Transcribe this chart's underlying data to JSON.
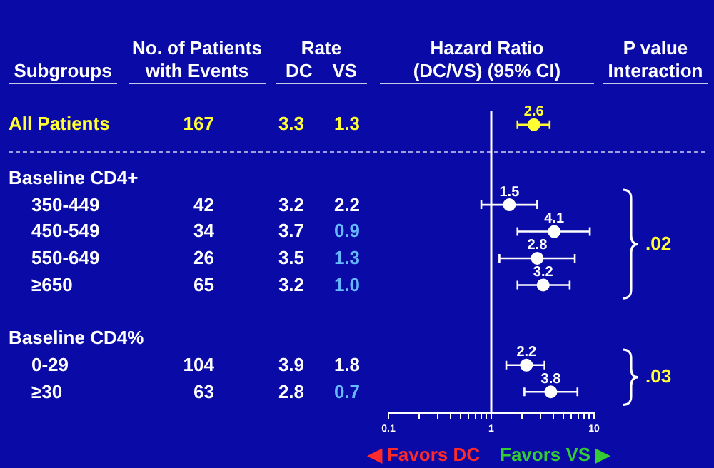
{
  "chart_data": [
    {
      "type": "other",
      "ylabel": "Subgroups",
      "legend_title": "Rate",
      "data_labels": true,
      "categories": [
        "All Patients",
        null,
        "Baseline CD4+",
        "350-449",
        "450-549",
        "550-649",
        "≥650",
        null,
        "Baseline CD4%",
        "0-29",
        "≥30"
      ],
      "series": [
        {
          "name": "No. of Patients with Events",
          "values": [
            167,
            null,
            null,
            42,
            34,
            26,
            65,
            null,
            null,
            104,
            63
          ],
          "colors": [
            "#ffff33",
            null,
            "#ffffff",
            "#ffffff",
            "#ffffff",
            "#ffffff",
            "#ffffff",
            null,
            "#ffffff",
            "#ffffff",
            "#ffffff"
          ]
        },
        {
          "name": "DC",
          "values": [
            3.3,
            null,
            null,
            3.2,
            3.7,
            3.5,
            3.2,
            null,
            null,
            3.9,
            2.8
          ],
          "colors": [
            "#ffff33",
            null,
            null,
            "#ffffff",
            "#ffffff",
            "#ffffff",
            "#ffffff",
            null,
            null,
            "#ffffff",
            "#ffffff"
          ]
        },
        {
          "name": "VS",
          "values": [
            1.3,
            null,
            null,
            2.2,
            0.9,
            1.3,
            1.0,
            null,
            null,
            1.8,
            0.7
          ],
          "value_labels": [
            "1.3",
            null,
            null,
            "2.2",
            "0.9",
            "1.3",
            "1.0",
            null,
            null,
            "1.8",
            "0.7"
          ],
          "colors": [
            "#ffff33",
            null,
            null,
            "#ffffff",
            "#66b8ff",
            "#66b8ff",
            "#66b8ff",
            null,
            null,
            "#ffffff",
            "#66b8ff"
          ]
        },
        {
          "name": "P value Interaction",
          "values": [
            null,
            null,
            0.02,
            null,
            null,
            null,
            null,
            null,
            0.03,
            null,
            null
          ],
          "value_labels": [
            null,
            null,
            ".02",
            null,
            null,
            null,
            null,
            null,
            ".03",
            null,
            null
          ],
          "colors": [
            null,
            null,
            "#ffff33",
            null,
            null,
            null,
            null,
            null,
            "#ffff33",
            null,
            null
          ]
        }
      ]
    },
    {
      "type": "scatter",
      "orientation": "horizontal",
      "title": "Hazard Ratio (DC/VS) (95% CI)",
      "log": "x",
      "marker": "circle",
      "data_labels": true,
      "tick_labels": "x",
      "categories": [
        null,
        null,
        null,
        null,
        null,
        null,
        null,
        null,
        null,
        null,
        null
      ],
      "values": [
        2.6,
        null,
        null,
        1.5,
        4.1,
        2.8,
        3.2,
        null,
        null,
        2.2,
        3.8
      ],
      "colors": [
        "#ffff33",
        null,
        null,
        "#ffffff",
        "#ffffff",
        "#ffffff",
        "#ffffff",
        null,
        null,
        "#ffffff",
        "#ffffff"
      ],
      "errors": [
        [
          1.8,
          3.7
        ],
        null,
        null,
        [
          0.8,
          2.8
        ],
        [
          1.8,
          9.1
        ],
        [
          1.2,
          6.5
        ],
        [
          1.8,
          5.8
        ],
        null,
        null,
        [
          1.4,
          3.3
        ],
        [
          2.1,
          6.9
        ]
      ],
      "xlim": [
        0.1,
        10
      ],
      "xticks": [
        0.1,
        {
          "value": 0.2,
          "label": null
        },
        {
          "value": 0.3,
          "label": null
        },
        {
          "value": 0.4,
          "label": null
        },
        {
          "value": 0.5,
          "label": null
        },
        {
          "value": 0.6,
          "label": null
        },
        {
          "value": 0.7,
          "label": null
        },
        {
          "value": 0.8,
          "label": null
        },
        {
          "value": 0.9,
          "label": null
        },
        1,
        {
          "value": 2,
          "label": null
        },
        {
          "value": 3,
          "label": null
        },
        {
          "value": 4,
          "label": null
        },
        {
          "value": 5,
          "label": null
        },
        {
          "value": 6,
          "label": null
        },
        {
          "value": 7,
          "label": null
        },
        {
          "value": 8,
          "label": null
        },
        {
          "value": 9,
          "label": null
        },
        10
      ],
      "ref_lines": [
        {
          "axis": "x",
          "value": 1,
          "color": "#ffffff"
        }
      ],
      "annotations": [
        "◀ Favors DC",
        "Favors VS ▶"
      ]
    }
  ]
}
